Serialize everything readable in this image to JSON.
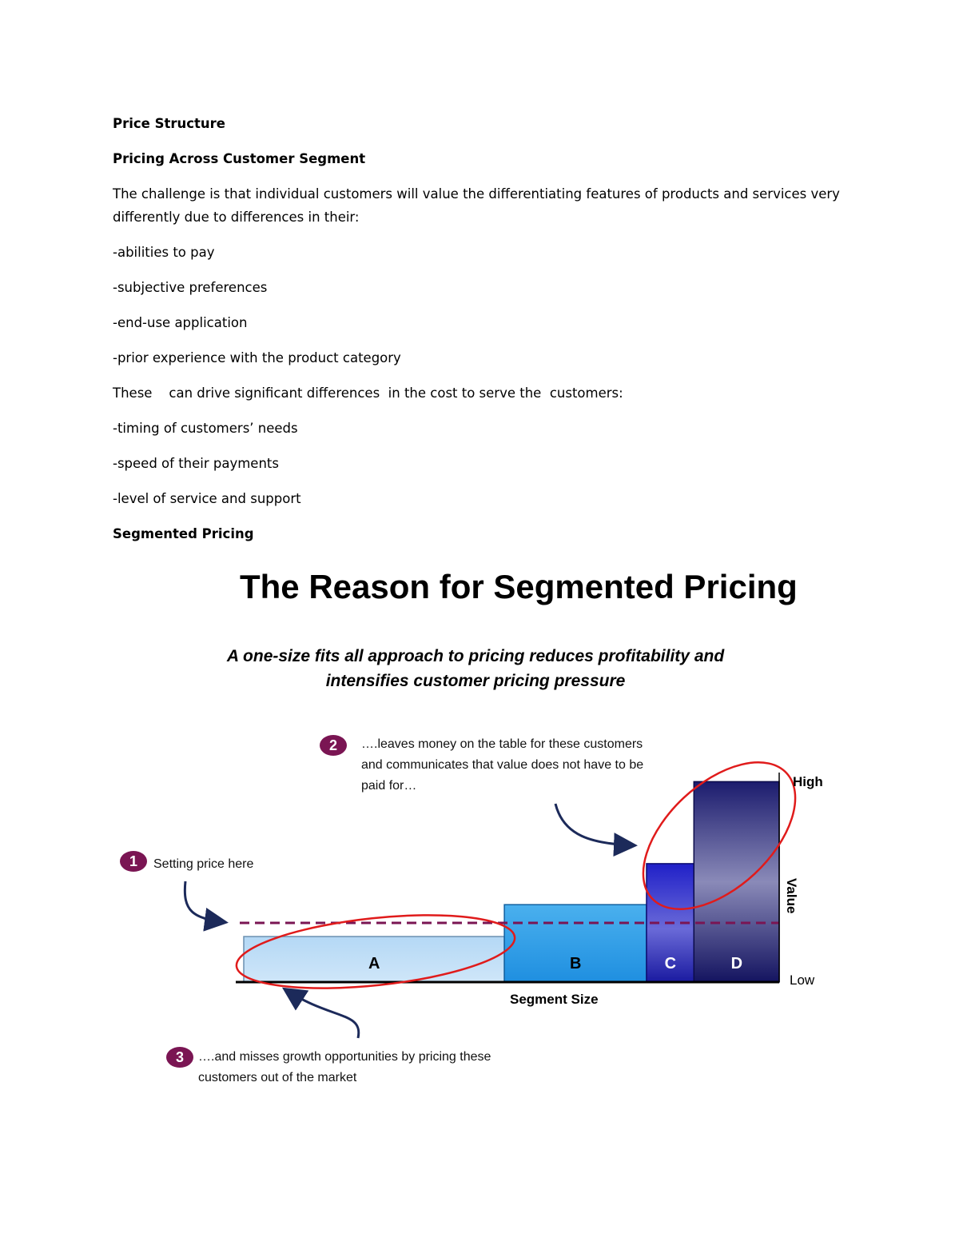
{
  "doc": {
    "heading": "Price Structure",
    "subheading": "Pricing Across Customer Segment",
    "intro": "The challenge is that individual customers will value the  differentiating features of products and services very differently  due to differences in their:",
    "value_factors": [
      "-abilities to pay",
      "-subjective preferences",
      "-end-use application",
      "-prior experience with the product category"
    ],
    "cost_intro": "These    can drive significant differences  in the cost to serve the  customers:",
    "cost_factors": [
      "-timing of customers’ needs",
      "-speed of their payments",
      "-level of service and support"
    ],
    "section_title": "Segmented Pricing"
  },
  "figure": {
    "title": "The Reason for Segmented Pricing",
    "subtitle": "A one-size fits all approach to pricing reduces profitability and intensifies customer pricing pressure",
    "callouts": [
      {
        "number": "1",
        "text": "Setting price here"
      },
      {
        "number": "2",
        "text": "….leaves money on the table for these customers and communicates that value does not have to be paid for…"
      },
      {
        "number": "3",
        "text": "….and misses growth opportunities by pricing these customers out of the market"
      }
    ],
    "colors": {
      "segment_a": "#b4d8f5",
      "segment_b": "#1f8fe0",
      "segment_c": "#2a2ad6",
      "segment_d": "#1c1c6e",
      "price_line": "#7a1553",
      "highlight_ellipse": "#e01b1b",
      "badge": "#7a1553",
      "arrow": "#1c2a5a"
    }
  },
  "chart_data": {
    "type": "bar",
    "categories": [
      "A",
      "B",
      "C",
      "D"
    ],
    "values": [
      1.0,
      1.7,
      2.6,
      4.4
    ],
    "segment_sizes": [
      5.5,
      3.0,
      1.0,
      1.8
    ],
    "price_line_value": 1.3,
    "xlabel": "Segment Size",
    "ylabel": "Value",
    "y_tick_labels": [
      "Low",
      "High"
    ],
    "ylim": [
      0,
      4.6
    ]
  }
}
